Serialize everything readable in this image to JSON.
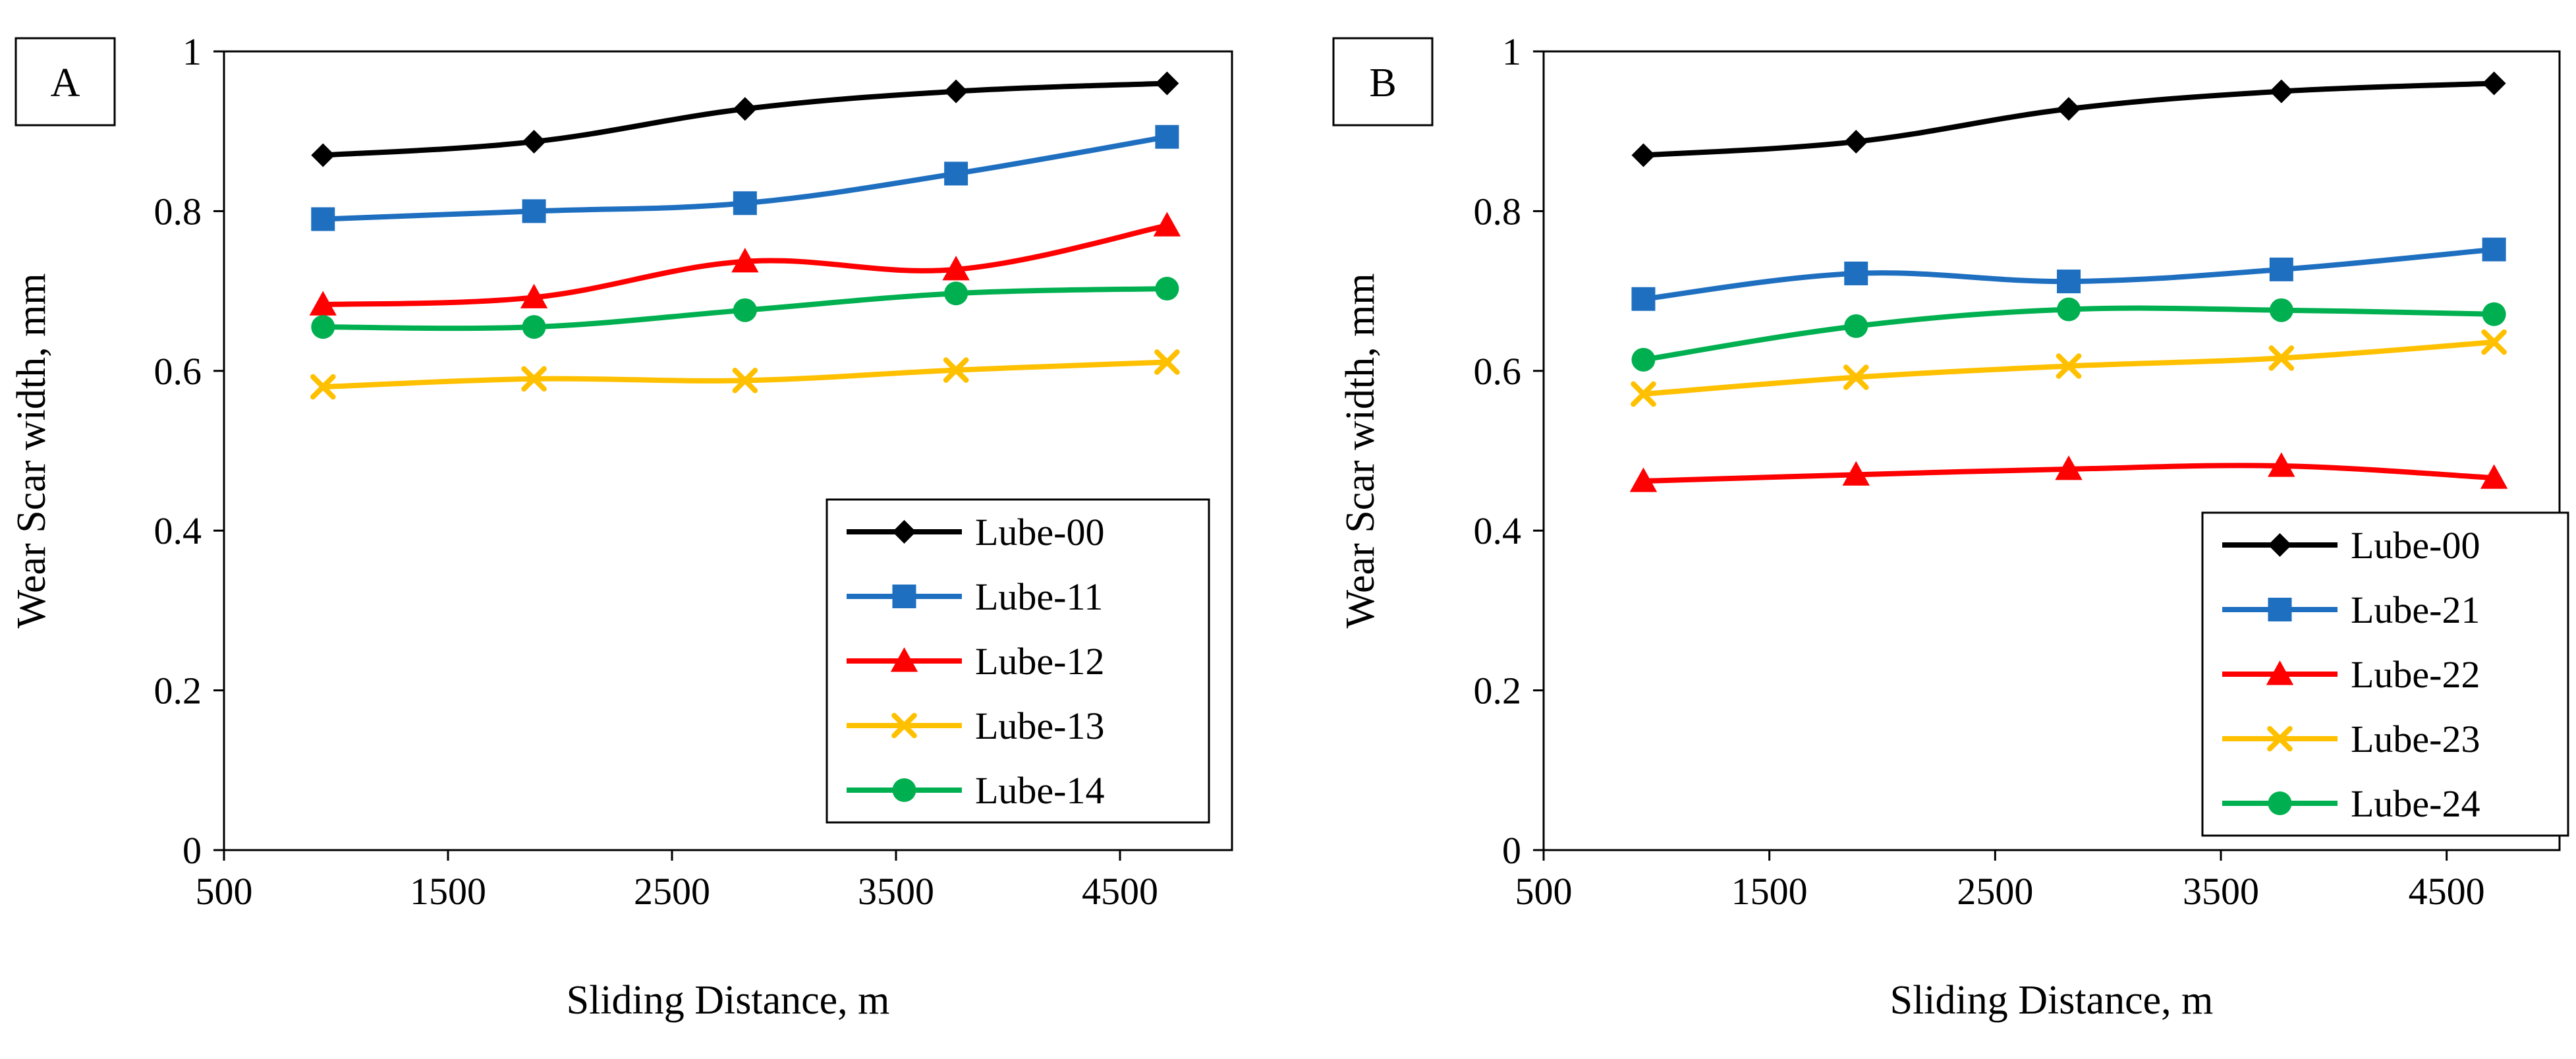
{
  "chart_data": [
    {
      "type": "line",
      "panel_label": "A",
      "title": "",
      "xlabel": "Sliding Distance, m",
      "ylabel": "Wear Scar width, mm",
      "xlim": [
        500,
        5000
      ],
      "ylim": [
        0,
        1
      ],
      "xticks": [
        "500",
        "1500",
        "2500",
        "3500",
        "4500"
      ],
      "yticks": [
        "0",
        "0.2",
        "0.4",
        "0.6",
        "0.8",
        "1"
      ],
      "grid": false,
      "legend_position": "bottom-right",
      "x": [
        942,
        1884,
        2826,
        3768,
        4710
      ],
      "series": [
        {
          "name": "Lube-00",
          "marker": "diamond",
          "color": "#000000",
          "values": [
            0.87,
            0.887,
            0.928,
            0.95,
            0.96
          ]
        },
        {
          "name": "Lube-11",
          "marker": "square",
          "color": "#1f6fc0",
          "values": [
            0.79,
            0.8,
            0.81,
            0.847,
            0.893
          ]
        },
        {
          "name": "Lube-12",
          "marker": "triangle",
          "color": "#ff0000",
          "values": [
            0.683,
            0.692,
            0.737,
            0.727,
            0.782
          ]
        },
        {
          "name": "Lube-13",
          "marker": "x",
          "color": "#ffc000",
          "values": [
            0.58,
            0.59,
            0.588,
            0.601,
            0.611
          ]
        },
        {
          "name": "Lube-14",
          "marker": "circle",
          "color": "#00b050",
          "values": [
            0.655,
            0.655,
            0.676,
            0.697,
            0.703
          ]
        }
      ]
    },
    {
      "type": "line",
      "panel_label": "B",
      "title": "",
      "xlabel": "Sliding Distance, m",
      "ylabel": "Wear Scar width, mm",
      "xlim": [
        500,
        5000
      ],
      "ylim": [
        0,
        1
      ],
      "xticks": [
        "500",
        "1500",
        "2500",
        "3500",
        "4500"
      ],
      "yticks": [
        "0",
        "0.2",
        "0.4",
        "0.6",
        "0.8",
        "1"
      ],
      "grid": false,
      "legend_position": "bottom-right",
      "x": [
        942,
        1884,
        2826,
        3768,
        4710
      ],
      "series": [
        {
          "name": "Lube-00",
          "marker": "diamond",
          "color": "#000000",
          "values": [
            0.87,
            0.887,
            0.928,
            0.95,
            0.96
          ]
        },
        {
          "name": "Lube-21",
          "marker": "square",
          "color": "#1f6fc0",
          "values": [
            0.69,
            0.722,
            0.712,
            0.727,
            0.752
          ]
        },
        {
          "name": "Lube-22",
          "marker": "triangle",
          "color": "#ff0000",
          "values": [
            0.462,
            0.47,
            0.477,
            0.481,
            0.466
          ]
        },
        {
          "name": "Lube-23",
          "marker": "x",
          "color": "#ffc000",
          "values": [
            0.571,
            0.592,
            0.606,
            0.616,
            0.636
          ]
        },
        {
          "name": "Lube-24",
          "marker": "circle",
          "color": "#00b050",
          "values": [
            0.614,
            0.656,
            0.677,
            0.676,
            0.671
          ]
        }
      ]
    }
  ]
}
